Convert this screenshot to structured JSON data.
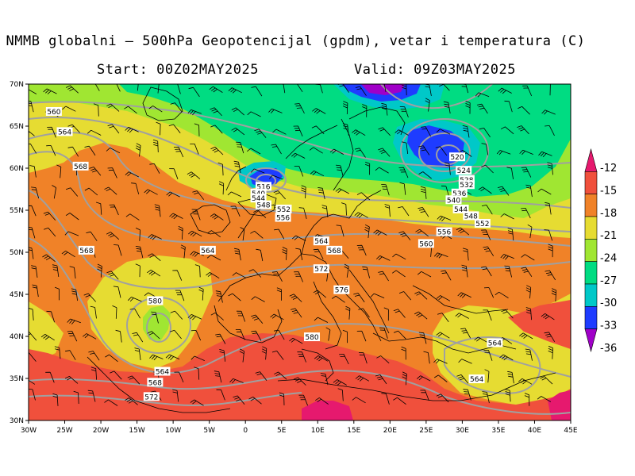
{
  "header": {
    "title": "NMMB globalni — 500hPa Geopotencijal (gpdm), vetar i temperatura (C)",
    "start": "Start: 00Z02MAY2025",
    "valid": "Valid: 09Z03MAY2025"
  },
  "map": {
    "lon_range": [
      -30,
      45
    ],
    "lat_range": [
      30,
      70
    ],
    "lon_ticks": [
      "30W",
      "25W",
      "20W",
      "15W",
      "10W",
      "5W",
      "0",
      "5E",
      "10E",
      "15E",
      "20E",
      "25E",
      "30E",
      "35E",
      "40E",
      "45E"
    ],
    "lat_ticks": [
      "30N",
      "35N",
      "40N",
      "45N",
      "50N",
      "55N",
      "60N",
      "65N",
      "70N"
    ],
    "contour_labels": [
      {
        "text": "560",
        "lon": -26.5,
        "lat": 66.7
      },
      {
        "text": "564",
        "lon": -25.0,
        "lat": 64.3
      },
      {
        "text": "568",
        "lon": -22.8,
        "lat": 60.2
      },
      {
        "text": "568",
        "lon": -22.0,
        "lat": 50.2
      },
      {
        "text": "564",
        "lon": -5.2,
        "lat": 50.2
      },
      {
        "text": "580",
        "lon": -12.5,
        "lat": 44.2
      },
      {
        "text": "564",
        "lon": -11.5,
        "lat": 35.8
      },
      {
        "text": "568",
        "lon": -12.5,
        "lat": 34.5
      },
      {
        "text": "572",
        "lon": -13.0,
        "lat": 32.8
      },
      {
        "text": "516",
        "lon": 2.5,
        "lat": 57.8
      },
      {
        "text": "540",
        "lon": 1.8,
        "lat": 57.0
      },
      {
        "text": "544",
        "lon": 1.8,
        "lat": 56.4
      },
      {
        "text": "548",
        "lon": 2.5,
        "lat": 55.6
      },
      {
        "text": "552",
        "lon": 5.3,
        "lat": 55.1
      },
      {
        "text": "556",
        "lon": 5.2,
        "lat": 54.1
      },
      {
        "text": "564",
        "lon": 10.5,
        "lat": 51.3
      },
      {
        "text": "568",
        "lon": 12.3,
        "lat": 50.2
      },
      {
        "text": "572",
        "lon": 10.5,
        "lat": 48.0
      },
      {
        "text": "576",
        "lon": 13.3,
        "lat": 45.5
      },
      {
        "text": "580",
        "lon": 9.2,
        "lat": 39.9
      },
      {
        "text": "520",
        "lon": 29.3,
        "lat": 61.3
      },
      {
        "text": "524",
        "lon": 30.2,
        "lat": 59.7
      },
      {
        "text": "528",
        "lon": 30.6,
        "lat": 58.6
      },
      {
        "text": "532",
        "lon": 30.6,
        "lat": 58.0
      },
      {
        "text": "536",
        "lon": 29.6,
        "lat": 57.0
      },
      {
        "text": "540",
        "lon": 28.8,
        "lat": 56.2
      },
      {
        "text": "544",
        "lon": 29.8,
        "lat": 55.1
      },
      {
        "text": "548",
        "lon": 31.2,
        "lat": 54.3
      },
      {
        "text": "552",
        "lon": 32.8,
        "lat": 53.4
      },
      {
        "text": "556",
        "lon": 27.5,
        "lat": 52.4
      },
      {
        "text": "560",
        "lon": 25.0,
        "lat": 51.0
      },
      {
        "text": "564",
        "lon": 34.5,
        "lat": 39.2
      },
      {
        "text": "564",
        "lon": 32.0,
        "lat": 34.9
      }
    ]
  },
  "colorbar": {
    "levels": [
      "-12",
      "-15",
      "-18",
      "-21",
      "-24",
      "-27",
      "-30",
      "-33",
      "-36"
    ],
    "colors": [
      "#e6196e",
      "#f0503c",
      "#f08228",
      "#e6dc32",
      "#a0e632",
      "#00dc82",
      "#00c8c8",
      "#1e3cff",
      "#a000c8"
    ]
  },
  "colors": {
    "band_-15_-12": "#f0503c",
    "band_-18_-15": "#f08228",
    "band_-21_-18": "#e6dc32",
    "band_-24_-21": "#a0e632",
    "band_-27_-24": "#00dc82",
    "band_-30_-27": "#00c8c8",
    "band_-33_-30": "#1e3cff",
    "band_-36_-33": "#a000c8",
    "above_-12": "#e6196e",
    "contour": "#a0a0a0"
  }
}
